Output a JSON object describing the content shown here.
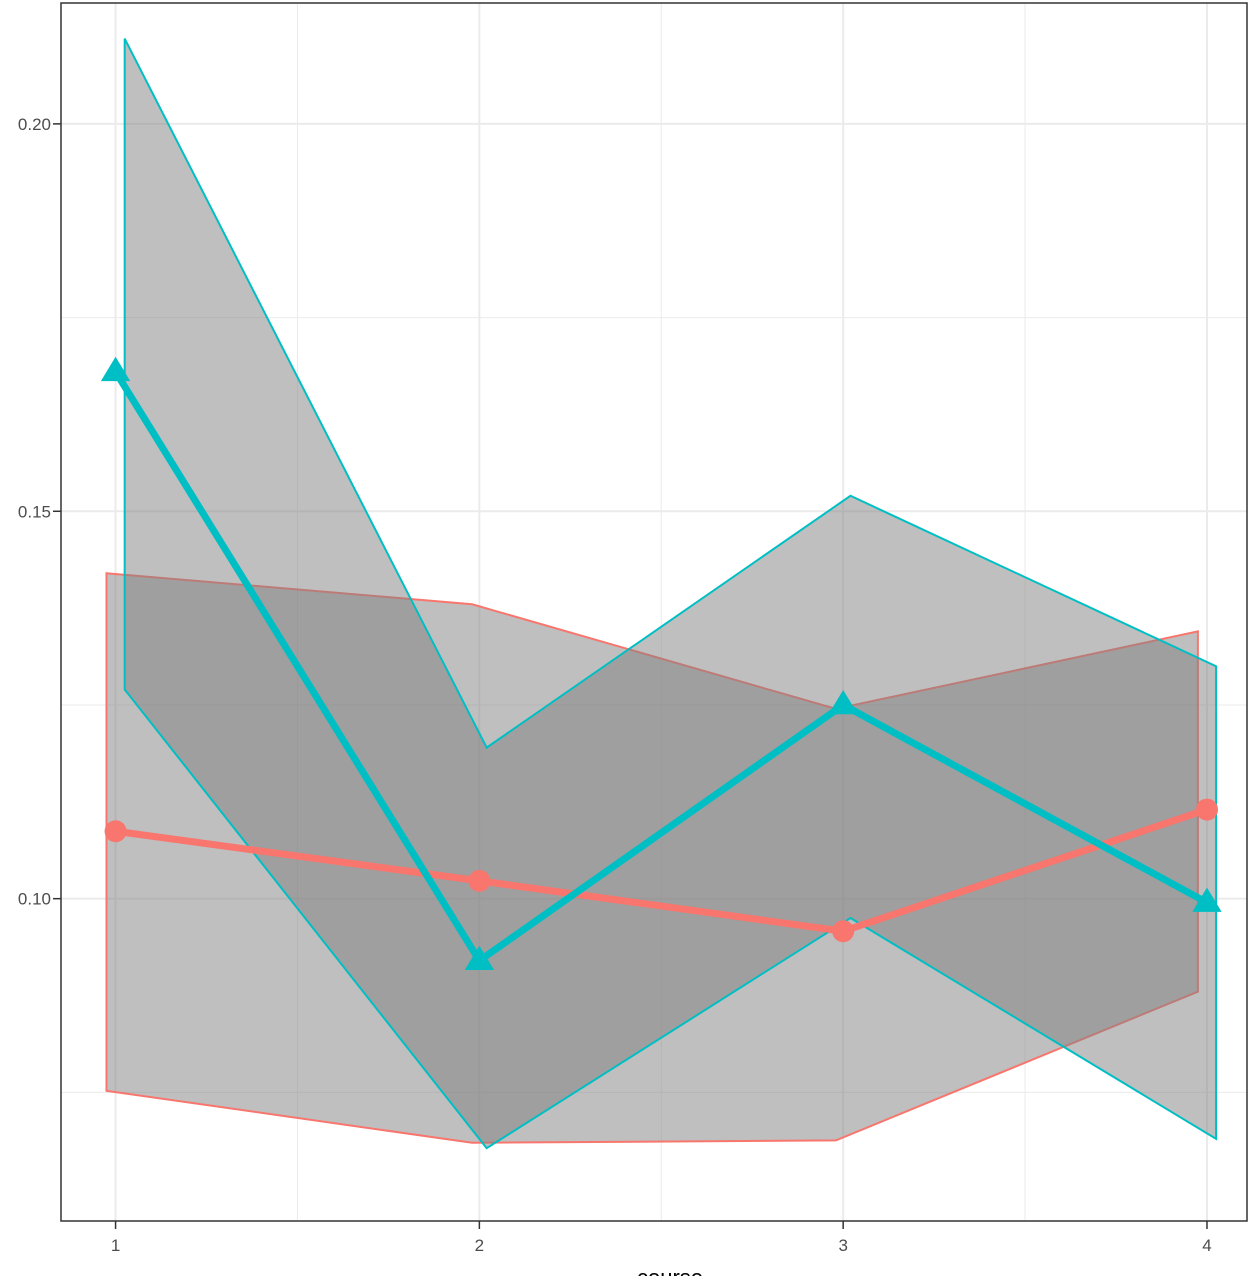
{
  "chart_data": {
    "type": "line",
    "title": "",
    "xlabel": "course",
    "ylabel": "",
    "x": [
      1,
      2,
      3,
      4
    ],
    "xlim": [
      0.85,
      4.11
    ],
    "ylim": [
      0.0584,
      0.2156
    ],
    "x_ticks": [
      1,
      2,
      3,
      4
    ],
    "x_tick_labels": [
      "1",
      "2",
      "3",
      "4"
    ],
    "y_ticks": [
      0.1,
      0.15,
      0.2
    ],
    "y_tick_labels": [
      "0.10",
      "0.15",
      "0.20"
    ],
    "grid": true,
    "legend": "none",
    "series": [
      {
        "color": "#F8766D",
        "marker": "circle",
        "x": [
          1,
          2,
          3,
          4
        ],
        "values": [
          0.1087,
          0.1023,
          0.0958,
          0.1115
        ],
        "band_x": [
          0.975,
          1.98,
          2.98,
          3.975
        ],
        "band_lower": [
          0.0752,
          0.0685,
          0.0688,
          0.088
        ],
        "band_upper": [
          0.142,
          0.138,
          0.1245,
          0.1345
        ]
      },
      {
        "color": "#00BFC4",
        "marker": "triangle",
        "x": [
          1,
          2,
          3,
          4
        ],
        "values": [
          0.168,
          0.092,
          0.125,
          0.0995
        ],
        "band_x": [
          1.025,
          2.02,
          3.02,
          4.025
        ],
        "band_lower": [
          0.127,
          0.0678,
          0.0975,
          0.069
        ],
        "band_upper": [
          0.211,
          0.1195,
          0.152,
          0.13
        ]
      }
    ],
    "band_fill": "#7f7f7f",
    "band_fill_opacity": 0.5
  }
}
